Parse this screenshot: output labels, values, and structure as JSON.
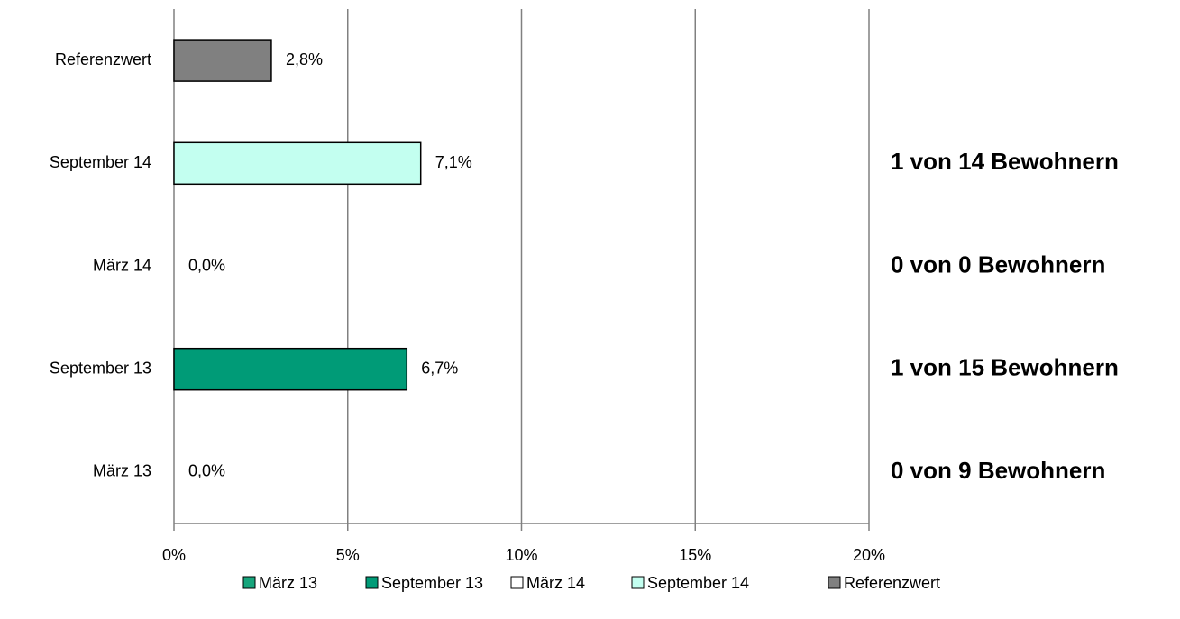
{
  "chart_data": {
    "type": "bar",
    "orientation": "horizontal",
    "categories": [
      "März 13",
      "September 13",
      "März 14",
      "September 14",
      "Referenzwert"
    ],
    "values": [
      0,
      6.7,
      0,
      7.1,
      2.8
    ],
    "value_labels": [
      "0,0%",
      "6,7%",
      "0,0%",
      "7,1%",
      "2,8%"
    ],
    "colors": [
      "#17a57c",
      "#009b77",
      "#ffffff",
      "#c3fff0",
      "#808080"
    ],
    "xlim": [
      0,
      20
    ],
    "xticks": [
      {
        "value": 0,
        "label": "0%"
      },
      {
        "value": 5,
        "label": "5%"
      },
      {
        "value": 10,
        "label": "10%"
      },
      {
        "value": 15,
        "label": "15%"
      },
      {
        "value": 20,
        "label": "20%"
      }
    ],
    "grid": true,
    "legend": "bottom",
    "annotations": [
      "0 von 9 Bewohnern",
      "1 von 15 Bewohnern",
      "0 von 0 Bewohnern",
      "1 von 14 Bewohnern",
      null
    ]
  }
}
